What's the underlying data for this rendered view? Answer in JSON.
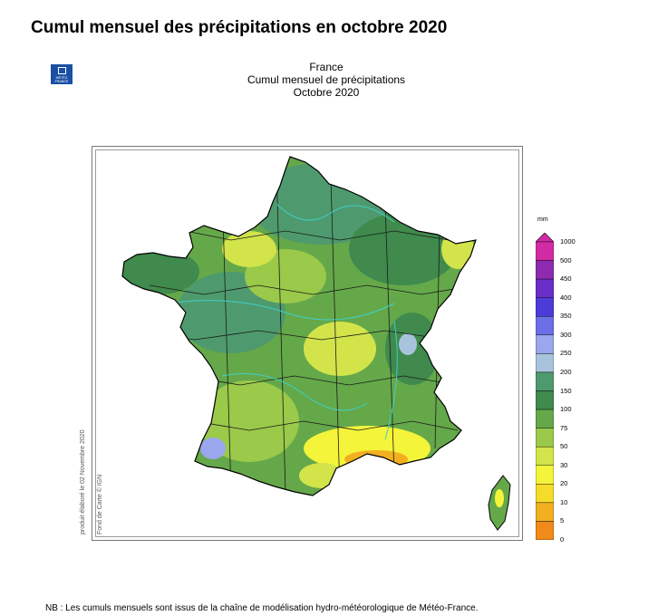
{
  "page_title": "Cumul mensuel des précipitations en octobre 2020",
  "logo": {
    "line1": "MÉTÉO",
    "line2": "FRANCE"
  },
  "map_header": {
    "line1": "France",
    "line2": "Cumul mensuel de précipitations",
    "line3": "Octobre 2020"
  },
  "credits": {
    "elaborated": "produit élaboré le 02 Novembre 2020",
    "basemap": "Fond de Carte © IGN"
  },
  "legend": {
    "unit": "mm",
    "classes": [
      {
        "label": "1000",
        "color": "#d22aa5"
      },
      {
        "label": "500",
        "color": "#8e2ab0"
      },
      {
        "label": "450",
        "color": "#6a2ec8"
      },
      {
        "label": "400",
        "color": "#4b3bd8"
      },
      {
        "label": "350",
        "color": "#6c6ee6"
      },
      {
        "label": "300",
        "color": "#9aa6ee"
      },
      {
        "label": "250",
        "color": "#a8c4dc"
      },
      {
        "label": "200",
        "color": "#4e9a6e"
      },
      {
        "label": "150",
        "color": "#3f8a4c"
      },
      {
        "label": "100",
        "color": "#65a84a"
      },
      {
        "label": "75",
        "color": "#9bc94a"
      },
      {
        "label": "50",
        "color": "#d2e44a"
      },
      {
        "label": "30",
        "color": "#f4f43a"
      },
      {
        "label": "20",
        "color": "#f6dc2a"
      },
      {
        "label": "10",
        "color": "#f2b020"
      },
      {
        "label": "5",
        "color": "#f08a18"
      },
      {
        "label": "0",
        "color": "#e85a10"
      }
    ]
  },
  "footnote": "NB : Les cumuls mensuels sont issus de la chaîne de modélisation hydro-météorologique de Météo-France."
}
